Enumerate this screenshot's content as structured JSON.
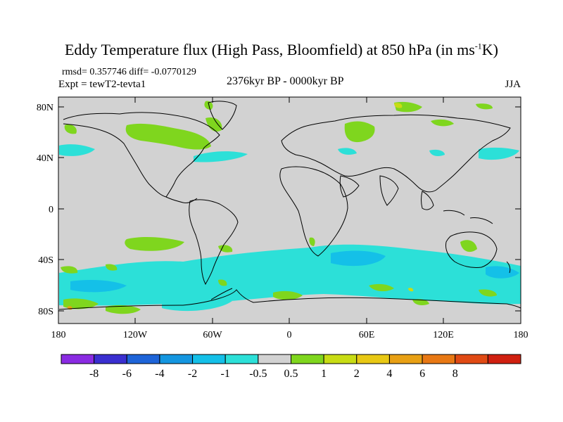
{
  "header": {
    "title_main": "Eddy Temperature flux (High Pass, Bloomfield) at 850 hPa (in ms",
    "title_sup": "-1",
    "title_end": "K)",
    "stats": "rmsd= 0.357746 diff= -0.0770129",
    "experiment": "Expt = tewT2-tevta1",
    "period": "2376kyr BP - 0000kyr BP",
    "season": "JJA"
  },
  "axes": {
    "lat_ticks": [
      "80N",
      "40N",
      "0",
      "40S",
      "80S"
    ],
    "lon_ticks": [
      "180",
      "120W",
      "60W",
      "0",
      "60E",
      "120E",
      "180"
    ]
  },
  "colorbar": {
    "colors": [
      "#8a2be2",
      "#3a2fd0",
      "#1e64d8",
      "#1496e0",
      "#14c0e8",
      "#2ce0d8",
      "#d2d2d2",
      "#7fd61e",
      "#c8dc14",
      "#e8c814",
      "#e8a014",
      "#e87814",
      "#e04a14",
      "#d02010"
    ],
    "labels": [
      "-8",
      "-6",
      "-4",
      "-2",
      "-1",
      "-0.5",
      "0.5",
      "1",
      "2",
      "4",
      "6",
      "8"
    ]
  },
  "palette": {
    "land_ocean_bg": "#d2d2d2",
    "green": "#7fd61e",
    "cyan": "#2ce0d8",
    "light_blue": "#14c0e8",
    "yellow": "#c8dc14",
    "orange": "#e8a014"
  }
}
